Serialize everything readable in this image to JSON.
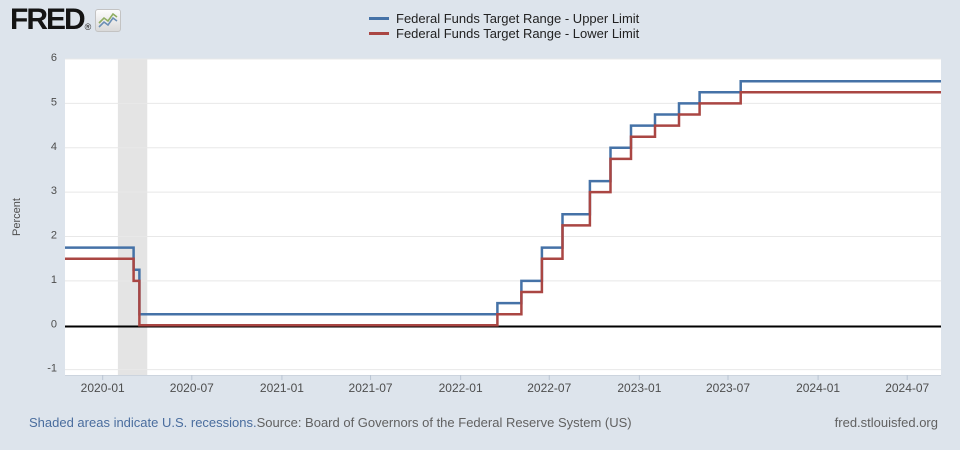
{
  "header": {
    "logo_text": "FRED",
    "registered_mark": "®",
    "logo_icon": "sparkline-chart-icon"
  },
  "legend": {
    "items": [
      {
        "label": "Federal Funds Target Range - Upper Limit",
        "color": "#4572a7"
      },
      {
        "label": "Federal Funds Target Range - Lower Limit",
        "color": "#aa4643"
      }
    ]
  },
  "chart_data": {
    "type": "line",
    "step": true,
    "title": "",
    "xlabel": "",
    "ylabel": "Percent",
    "legend_position": "top",
    "grid": "horizontal-only",
    "x_domain": [
      "2019-10-16",
      "2024-09-08"
    ],
    "ylim": [
      -1.12,
      6.0
    ],
    "yticks": [
      -1,
      0,
      1,
      2,
      3,
      4,
      5,
      6
    ],
    "xticks": [
      {
        "label": "2020-01",
        "date": "2020-01-01"
      },
      {
        "label": "2020-07",
        "date": "2020-07-01"
      },
      {
        "label": "2021-01",
        "date": "2021-01-01"
      },
      {
        "label": "2021-07",
        "date": "2021-07-01"
      },
      {
        "label": "2022-01",
        "date": "2022-01-01"
      },
      {
        "label": "2022-07",
        "date": "2022-07-01"
      },
      {
        "label": "2023-01",
        "date": "2023-01-01"
      },
      {
        "label": "2023-07",
        "date": "2023-07-01"
      },
      {
        "label": "2024-01",
        "date": "2024-01-01"
      },
      {
        "label": "2024-07",
        "date": "2024-07-01"
      }
    ],
    "recessions": [
      {
        "start": "2020-02-01",
        "end": "2020-04-01"
      }
    ],
    "series": [
      {
        "name": "Federal Funds Target Range - Upper Limit",
        "color": "#4572a7",
        "units": "Percent",
        "points": [
          [
            "2019-10-16",
            1.75
          ],
          [
            "2020-03-04",
            1.25
          ],
          [
            "2020-03-16",
            0.25
          ],
          [
            "2022-03-17",
            0.5
          ],
          [
            "2022-05-05",
            1.0
          ],
          [
            "2022-06-16",
            1.75
          ],
          [
            "2022-07-28",
            2.5
          ],
          [
            "2022-09-22",
            3.25
          ],
          [
            "2022-11-03",
            4.0
          ],
          [
            "2022-12-15",
            4.5
          ],
          [
            "2023-02-02",
            4.75
          ],
          [
            "2023-03-23",
            5.0
          ],
          [
            "2023-05-04",
            5.25
          ],
          [
            "2023-07-27",
            5.5
          ],
          [
            "2024-09-08",
            5.5
          ]
        ]
      },
      {
        "name": "Federal Funds Target Range - Lower Limit",
        "color": "#aa4643",
        "units": "Percent",
        "points": [
          [
            "2019-10-16",
            1.5
          ],
          [
            "2020-03-04",
            1.0
          ],
          [
            "2020-03-16",
            0.0
          ],
          [
            "2022-03-17",
            0.25
          ],
          [
            "2022-05-05",
            0.75
          ],
          [
            "2022-06-16",
            1.5
          ],
          [
            "2022-07-28",
            2.25
          ],
          [
            "2022-09-22",
            3.0
          ],
          [
            "2022-11-03",
            3.75
          ],
          [
            "2022-12-15",
            4.25
          ],
          [
            "2023-02-02",
            4.5
          ],
          [
            "2023-03-23",
            4.75
          ],
          [
            "2023-05-04",
            5.0
          ],
          [
            "2023-07-27",
            5.25
          ],
          [
            "2024-09-08",
            5.25
          ]
        ]
      }
    ],
    "colors": {
      "background": "#dde4ec",
      "plot_background": "#ffffff",
      "grid": "#e8e8e8",
      "recession_band": "#e4e4e4",
      "zero_line": "#000000",
      "axis_text": "#4d4d4d",
      "tick_mark": "#b9c4d2"
    }
  },
  "footer": {
    "recession_note": "Shaded areas indicate U.S. recessions.",
    "source": "Source: Board of Governors of the Federal Reserve System (US)",
    "site": "fred.stlouisfed.org"
  }
}
